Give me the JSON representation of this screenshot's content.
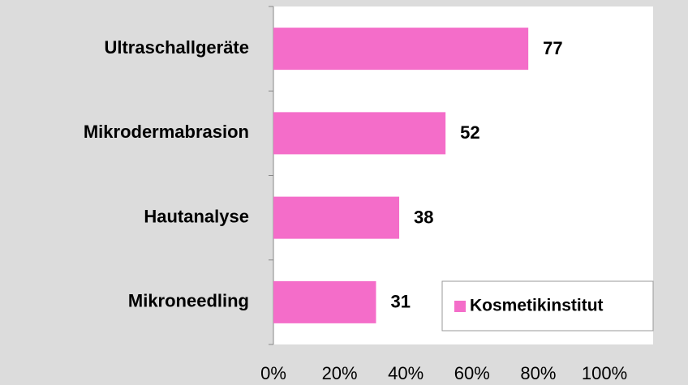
{
  "chart_data": {
    "type": "hbar",
    "categories": [
      "Ultraschallgeräte",
      "Mikrodermabrasion",
      "Hautanalyse",
      "Mikroneedling"
    ],
    "series": [
      {
        "name": "Kosmetikinstitut",
        "color": "#f46dc9",
        "values": [
          77,
          52,
          38,
          31
        ]
      }
    ],
    "xlim": [
      0,
      100
    ],
    "xticks": [
      {
        "value": 0,
        "label": "0%"
      },
      {
        "value": 20,
        "label": "20%"
      },
      {
        "value": 40,
        "label": "40%"
      },
      {
        "value": 60,
        "label": "60%"
      },
      {
        "value": 80,
        "label": "80%"
      },
      {
        "value": 100,
        "label": "100%"
      }
    ],
    "legend": "lower right",
    "grid": false
  }
}
